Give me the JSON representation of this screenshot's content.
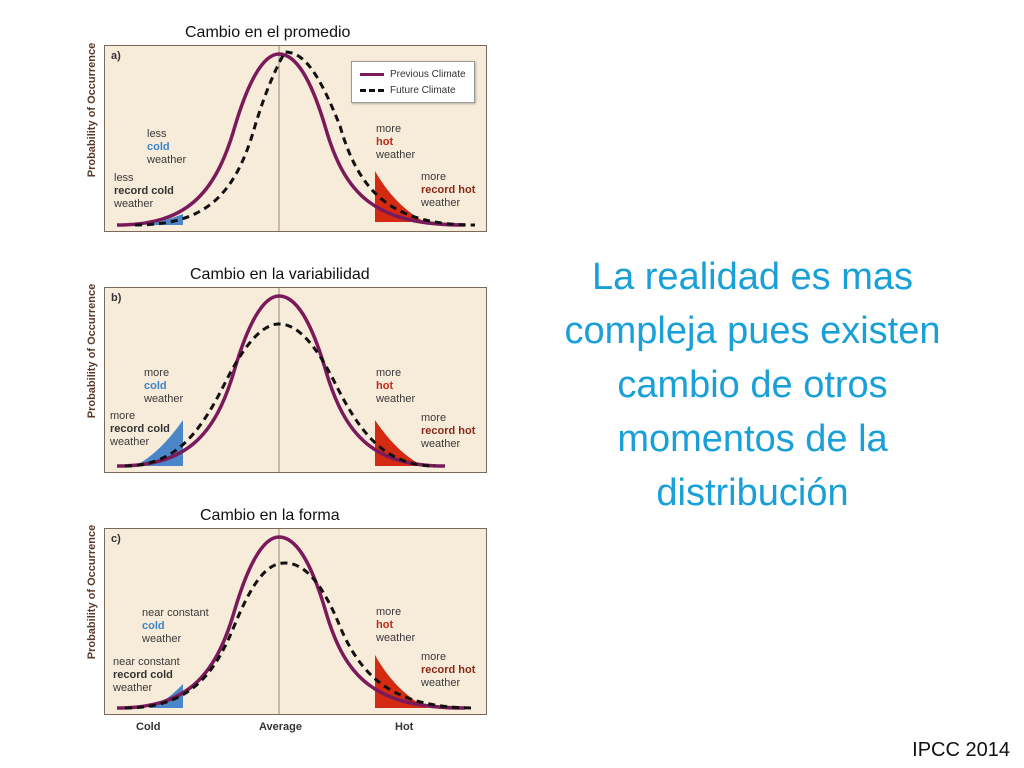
{
  "panels": [
    {
      "caption": "Cambio en el promedio",
      "tag": "a)",
      "ylabel": "Probability of Occurrence",
      "left_upper": {
        "l1": "less",
        "l2": "cold",
        "l3": "weather"
      },
      "left_lower": {
        "l1": "less",
        "l2": "record cold",
        "l3": "weather"
      },
      "right_upper": {
        "l1": "more",
        "l2": "hot",
        "l3": "weather"
      },
      "right_lower": {
        "l1": "more",
        "l2": "record hot",
        "l3": "weather"
      }
    },
    {
      "caption": "Cambio en la variabilidad",
      "tag": "b)",
      "ylabel": "Probability of Occurrence",
      "left_upper": {
        "l1": "more",
        "l2": "cold",
        "l3": "weather"
      },
      "left_lower": {
        "l1": "more",
        "l2": "record cold",
        "l3": "weather"
      },
      "right_upper": {
        "l1": "more",
        "l2": "hot",
        "l3": "weather"
      },
      "right_lower": {
        "l1": "more",
        "l2": "record hot",
        "l3": "weather"
      }
    },
    {
      "caption": "Cambio en la forma",
      "tag": "c)",
      "ylabel": "Probability of Occurrence",
      "left_upper": {
        "l1": "near constant",
        "l2": "cold",
        "l3": "weather"
      },
      "left_lower": {
        "l1": "near constant",
        "l2": "record cold",
        "l3": "weather"
      },
      "right_upper": {
        "l1": "more",
        "l2": "hot",
        "l3": "weather"
      },
      "right_lower": {
        "l1": "more",
        "l2": "record hot",
        "l3": "weather"
      }
    }
  ],
  "legend": {
    "previous": "Previous Climate",
    "future": "Future Climate"
  },
  "xaxis": {
    "cold": "Cold",
    "average": "Average",
    "hot": "Hot"
  },
  "main_text": "La realidad es mas compleja pues existen cambio de otros momentos de la distribución",
  "citation": "IPCC 2014",
  "colors": {
    "previous": "#7b1a5a",
    "future": "#111111",
    "cold_fill": "#4a86c8",
    "hot_fill": "#d42a12",
    "text_accent": "#1aa0d8",
    "plot_bg": "#f7ebd9"
  }
}
